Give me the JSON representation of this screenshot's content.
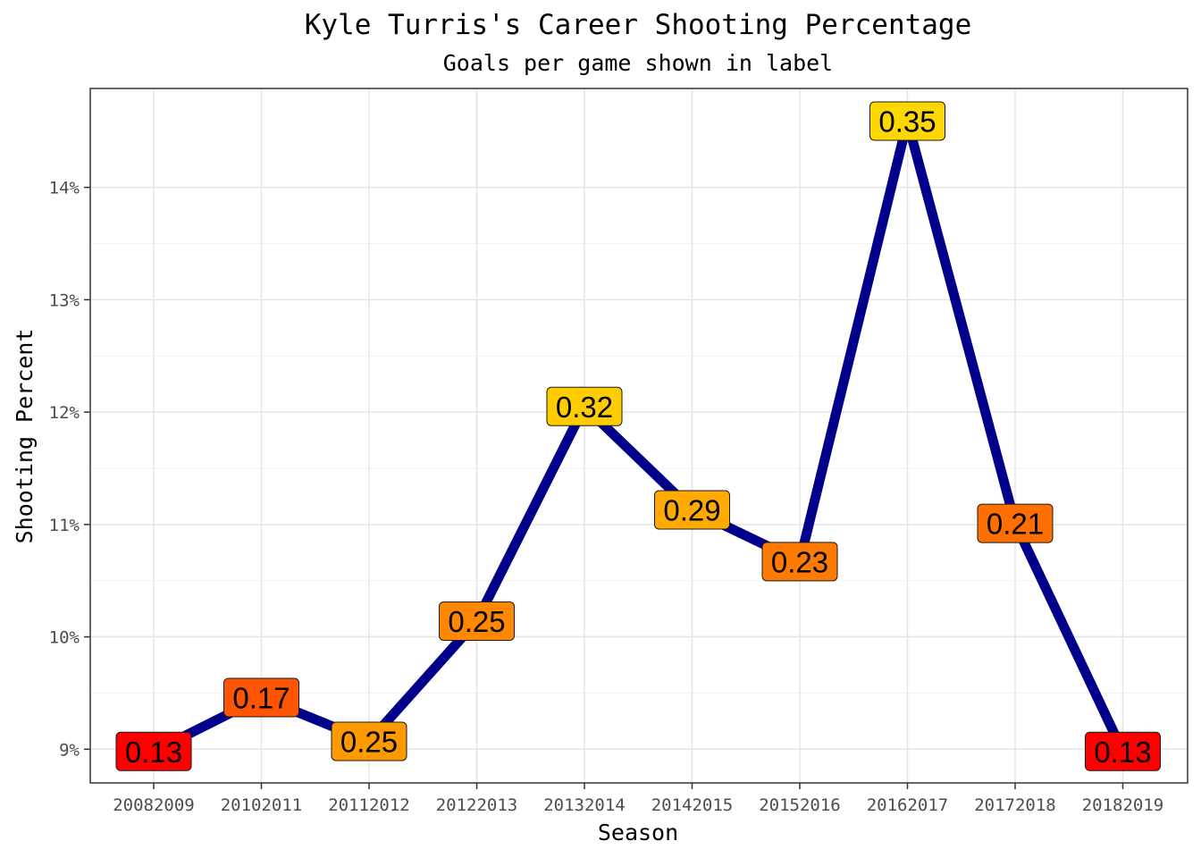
{
  "chart_data": {
    "type": "line",
    "title": "Kyle Turris's Career Shooting Percentage",
    "subtitle": "Goals per game shown in label",
    "xlabel": "Season",
    "ylabel": "Shooting Percent",
    "categories": [
      "20082009",
      "20102011",
      "20112012",
      "20122013",
      "20132014",
      "20142015",
      "20152016",
      "20162017",
      "20172018",
      "20182019"
    ],
    "series": [
      {
        "values": [
          8.98,
          9.46,
          9.07,
          10.14,
          12.05,
          11.13,
          10.67,
          14.59,
          11.01,
          8.98
        ],
        "labels": [
          "0.13",
          "0.17",
          "0.25",
          "0.25",
          "0.32",
          "0.29",
          "0.23",
          "0.35",
          "0.21",
          "0.13"
        ],
        "label_colors": [
          "#ff0000",
          "#ff5500",
          "#ff9900",
          "#ff8800",
          "#ffcc00",
          "#ffaa00",
          "#ff7a00",
          "#ffd700",
          "#ff6f00",
          "#ff0000"
        ],
        "line_color": "#00008b"
      }
    ],
    "yticks": [
      9,
      10,
      11,
      12,
      13,
      14
    ],
    "ytick_labels": [
      "9%",
      "10%",
      "11%",
      "12%",
      "13%",
      "14%"
    ],
    "ylim": [
      8.7,
      14.88
    ],
    "grid": true,
    "legend": "none"
  }
}
